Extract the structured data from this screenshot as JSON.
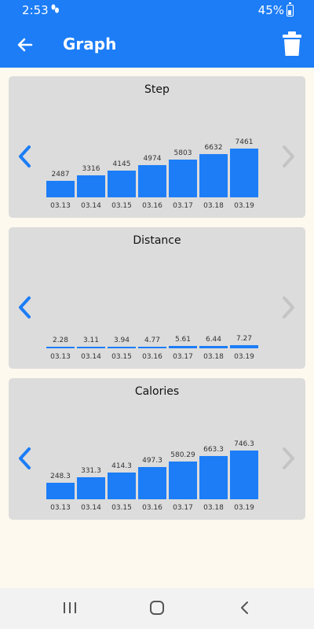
{
  "status": {
    "time": "2:53",
    "battery": "45%"
  },
  "header": {
    "title": "Graph"
  },
  "charts": [
    {
      "title": "Step",
      "dates": [
        "03.13",
        "03.14",
        "03.15",
        "03.16",
        "03.17",
        "03.18",
        "03.19"
      ],
      "value_labels": [
        "2487",
        "3316",
        "4145",
        "4974",
        "5803",
        "6632",
        "7461"
      ],
      "values": [
        2487,
        3316,
        4145,
        4974,
        5803,
        6632,
        7461
      ]
    },
    {
      "title": "Distance",
      "dates": [
        "03.13",
        "03.14",
        "03.15",
        "03.16",
        "03.17",
        "03.18",
        "03.19"
      ],
      "value_labels": [
        "2.28",
        "3.11",
        "3.94",
        "4.77",
        "5.61",
        "6.44",
        "7.27"
      ],
      "values": [
        2.28,
        3.11,
        3.94,
        4.77,
        5.61,
        6.44,
        7.27
      ]
    },
    {
      "title": "Calories",
      "dates": [
        "03.13",
        "03.14",
        "03.15",
        "03.16",
        "03.17",
        "03.18",
        "03.19"
      ],
      "value_labels": [
        "248.3",
        "331.3",
        "414.3",
        "497.3",
        "580.29",
        "663.3",
        "746.3"
      ],
      "values": [
        248.3,
        331.3,
        414.3,
        497.3,
        580.29,
        663.3,
        746.3
      ]
    }
  ],
  "chart_data": [
    {
      "type": "bar",
      "title": "Step",
      "categories": [
        "03.13",
        "03.14",
        "03.15",
        "03.16",
        "03.17",
        "03.18",
        "03.19"
      ],
      "values": [
        2487,
        3316,
        4145,
        4974,
        5803,
        6632,
        7461
      ],
      "ylim": [
        0,
        7461
      ]
    },
    {
      "type": "bar",
      "title": "Distance",
      "categories": [
        "03.13",
        "03.14",
        "03.15",
        "03.16",
        "03.17",
        "03.18",
        "03.19"
      ],
      "values": [
        2.28,
        3.11,
        3.94,
        4.77,
        5.61,
        6.44,
        7.27
      ],
      "ylim": [
        0,
        120
      ]
    },
    {
      "type": "bar",
      "title": "Calories",
      "categories": [
        "03.13",
        "03.14",
        "03.15",
        "03.16",
        "03.17",
        "03.18",
        "03.19"
      ],
      "values": [
        248.3,
        331.3,
        414.3,
        497.3,
        580.29,
        663.3,
        746.3
      ],
      "ylim": [
        0,
        746.3
      ]
    }
  ],
  "colors": {
    "accent": "#1c7df7",
    "card": "#dcdcdc",
    "background": "#fdf9ee",
    "nav_disabled": "#c4c4c4"
  },
  "icons": {
    "back": "arrow-back-icon",
    "delete": "trash-icon",
    "prev": "chevron-left-icon",
    "next": "chevron-right-icon"
  }
}
